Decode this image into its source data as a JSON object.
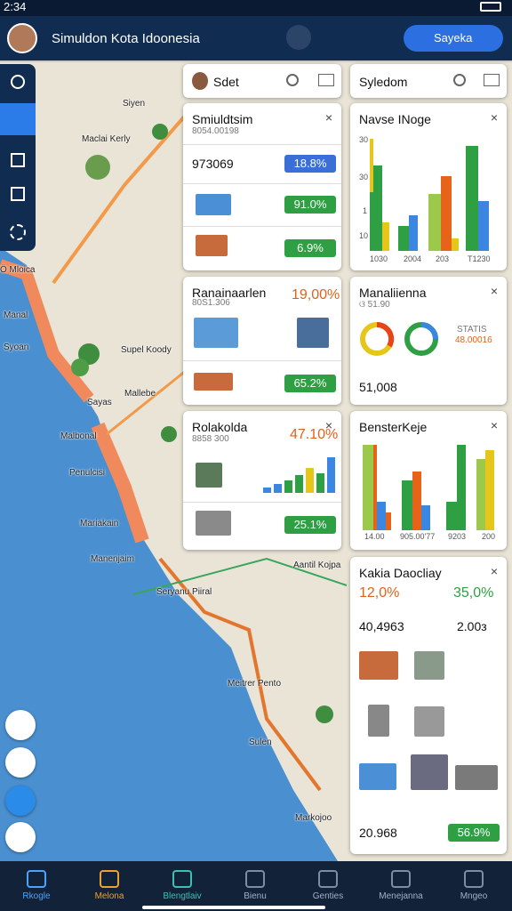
{
  "status": {
    "time": "2:34"
  },
  "header": {
    "title": "Simuldon Kota Idoonesia",
    "button": "Sayeka"
  },
  "map": {
    "labels": [
      "Siyen",
      "Maclai Kerly",
      "Ö Mloica",
      "Manal",
      "Syoan",
      "Supel Koody",
      "Mallebe",
      "Sayas",
      "Malbonal",
      "Penulcisi",
      "Mariakain",
      "Manenjaim",
      "Seryanu Piiral",
      "Aantil Kojpa",
      "Meitrer Pento",
      "Sulen",
      "Markojoo"
    ]
  },
  "panels": {
    "search_left": {
      "title": "Sdet"
    },
    "search_right": {
      "title": "Syledom"
    },
    "simulation": {
      "title": "Smiuldtsim",
      "subtitle": "8054.00198",
      "value": "973069",
      "badges": [
        "18.8%",
        "91.0%",
        "6.9%"
      ]
    },
    "ranainaarlen": {
      "title": "Ranainaarlen",
      "subtitle": "80S1.306",
      "value": "19,00%",
      "badge": "65.2%"
    },
    "rolakolda": {
      "title": "Rolakolda",
      "subtitle": "8858 300",
      "value": "47.10%",
      "badge": "25.1%"
    },
    "navse": {
      "title": "Navse INoge",
      "y_labels": [
        "30",
        "30",
        "1",
        "10"
      ],
      "x_labels": [
        "1030",
        "2004",
        "203",
        "T1230"
      ]
    },
    "manaliienna": {
      "title": "Manaliienna",
      "subtitle": "ଓ 51.90",
      "stat_label": "STATIS",
      "stat_value": "48.00016",
      "value": "51,008"
    },
    "benster": {
      "title": "BensterKeje",
      "x_labels": [
        "14.00",
        "905.00'77",
        "9203",
        "200"
      ]
    },
    "kakia": {
      "title": "Kakia Daocliay",
      "left_pct": "12,0%",
      "right_pct": "35,0%",
      "left_value": "40,4963",
      "right_value": "2.00з",
      "total": "20.968",
      "badge": "56.9%"
    }
  },
  "nav": [
    "Rkogle",
    "Melona",
    "Blengtlaiv",
    "Bienu",
    "Genties",
    "Menejanna",
    "Mngeo"
  ]
}
